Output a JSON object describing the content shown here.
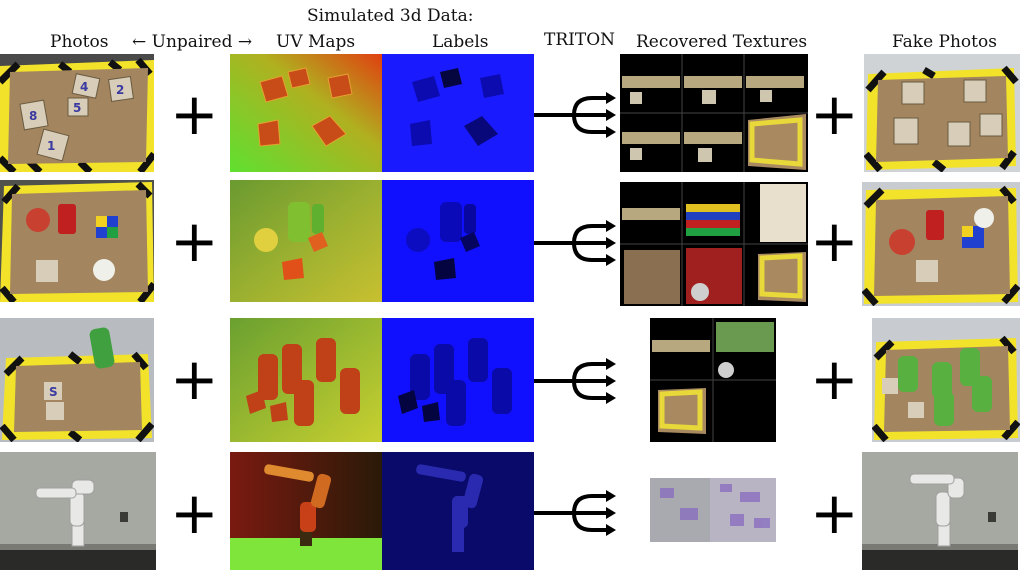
{
  "headers": {
    "photos": "Photos",
    "unpaired": "← Unpaired →",
    "simulated_title": "Simulated 3d Data:",
    "uv_maps": "UV Maps",
    "labels": "Labels",
    "triton": "TRITON",
    "recovered_textures": "Recovered Textures",
    "fake_photos": "Fake Photos"
  },
  "plus_symbol": "+",
  "colors": {
    "uv_green": "#7fe53a",
    "uv_red": "#e04010",
    "label_blue": "#1a1aff",
    "label_dark_blue": "#0a0a6a",
    "hazard_yellow": "#f2e32a",
    "wood": "#a08058"
  },
  "block_letters": {
    "row1": [
      "4",
      "8",
      "1",
      "5",
      "2"
    ],
    "row3": [
      "S"
    ]
  },
  "rows": [
    {
      "name": "blocks",
      "objects": "wooden alphabet blocks"
    },
    {
      "name": "mixed",
      "objects": "apple, soda can, rubik cube, block, garlic"
    },
    {
      "name": "soda-cans",
      "objects": "soda cans and blocks"
    },
    {
      "name": "robot-arm",
      "objects": "robot arm"
    }
  ]
}
